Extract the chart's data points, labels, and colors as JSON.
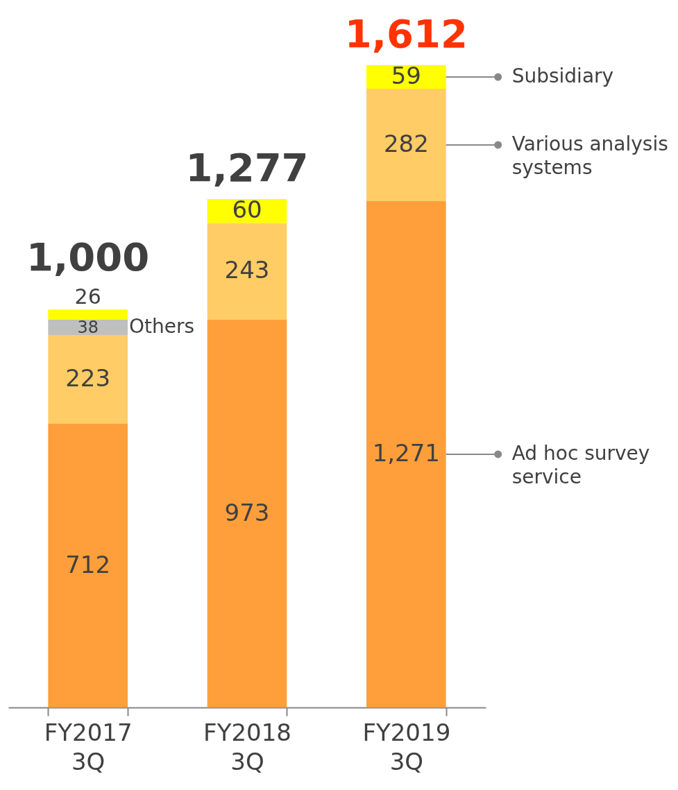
{
  "chart_data": {
    "type": "bar",
    "stacked": true,
    "data_labels": true,
    "categories": [
      "FY2017 3Q",
      "FY2018 3Q",
      "FY2019 3Q"
    ],
    "series": [
      {
        "name": "Ad hoc survey service",
        "color": "#ff9f3b",
        "values": [
          712,
          973,
          1271
        ],
        "value_labels": [
          "712",
          "973",
          "1,271"
        ]
      },
      {
        "name": "Various analysis systems",
        "color": "#ffcc66",
        "values": [
          223,
          243,
          282
        ]
      },
      {
        "name": "Others",
        "color": "#bfbfbf",
        "values": [
          38,
          null,
          null
        ]
      },
      {
        "name": "Subsidiary",
        "color": "#ffff00",
        "values": [
          26,
          60,
          59
        ]
      }
    ],
    "totals": [
      "1,000",
      "1,277",
      "1,612"
    ]
  }
}
